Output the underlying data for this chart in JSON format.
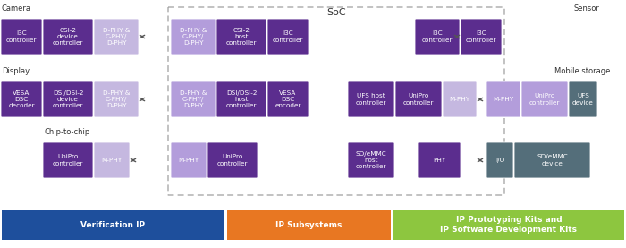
{
  "title": "SoC",
  "white_bg": "#ffffff",
  "camera_label": "Camera",
  "display_label": "Display",
  "chip_label": "Chip-to-chip",
  "sensor_label": "Sensor",
  "mobile_label": "Mobile storage",
  "dark_purple": "#5b2d8e",
  "light_purple": "#b39ddb",
  "dark_gray": "#546e7a",
  "light_gray_purple": "#c5b8e0",
  "blue_bar": "#1e4f9c",
  "orange_bar": "#e87722",
  "green_bar": "#8dc63f",
  "bar_labels": [
    "Verification IP",
    "IP Subsystems",
    "IP Prototyping Kits and\nIP Software Development Kits"
  ]
}
